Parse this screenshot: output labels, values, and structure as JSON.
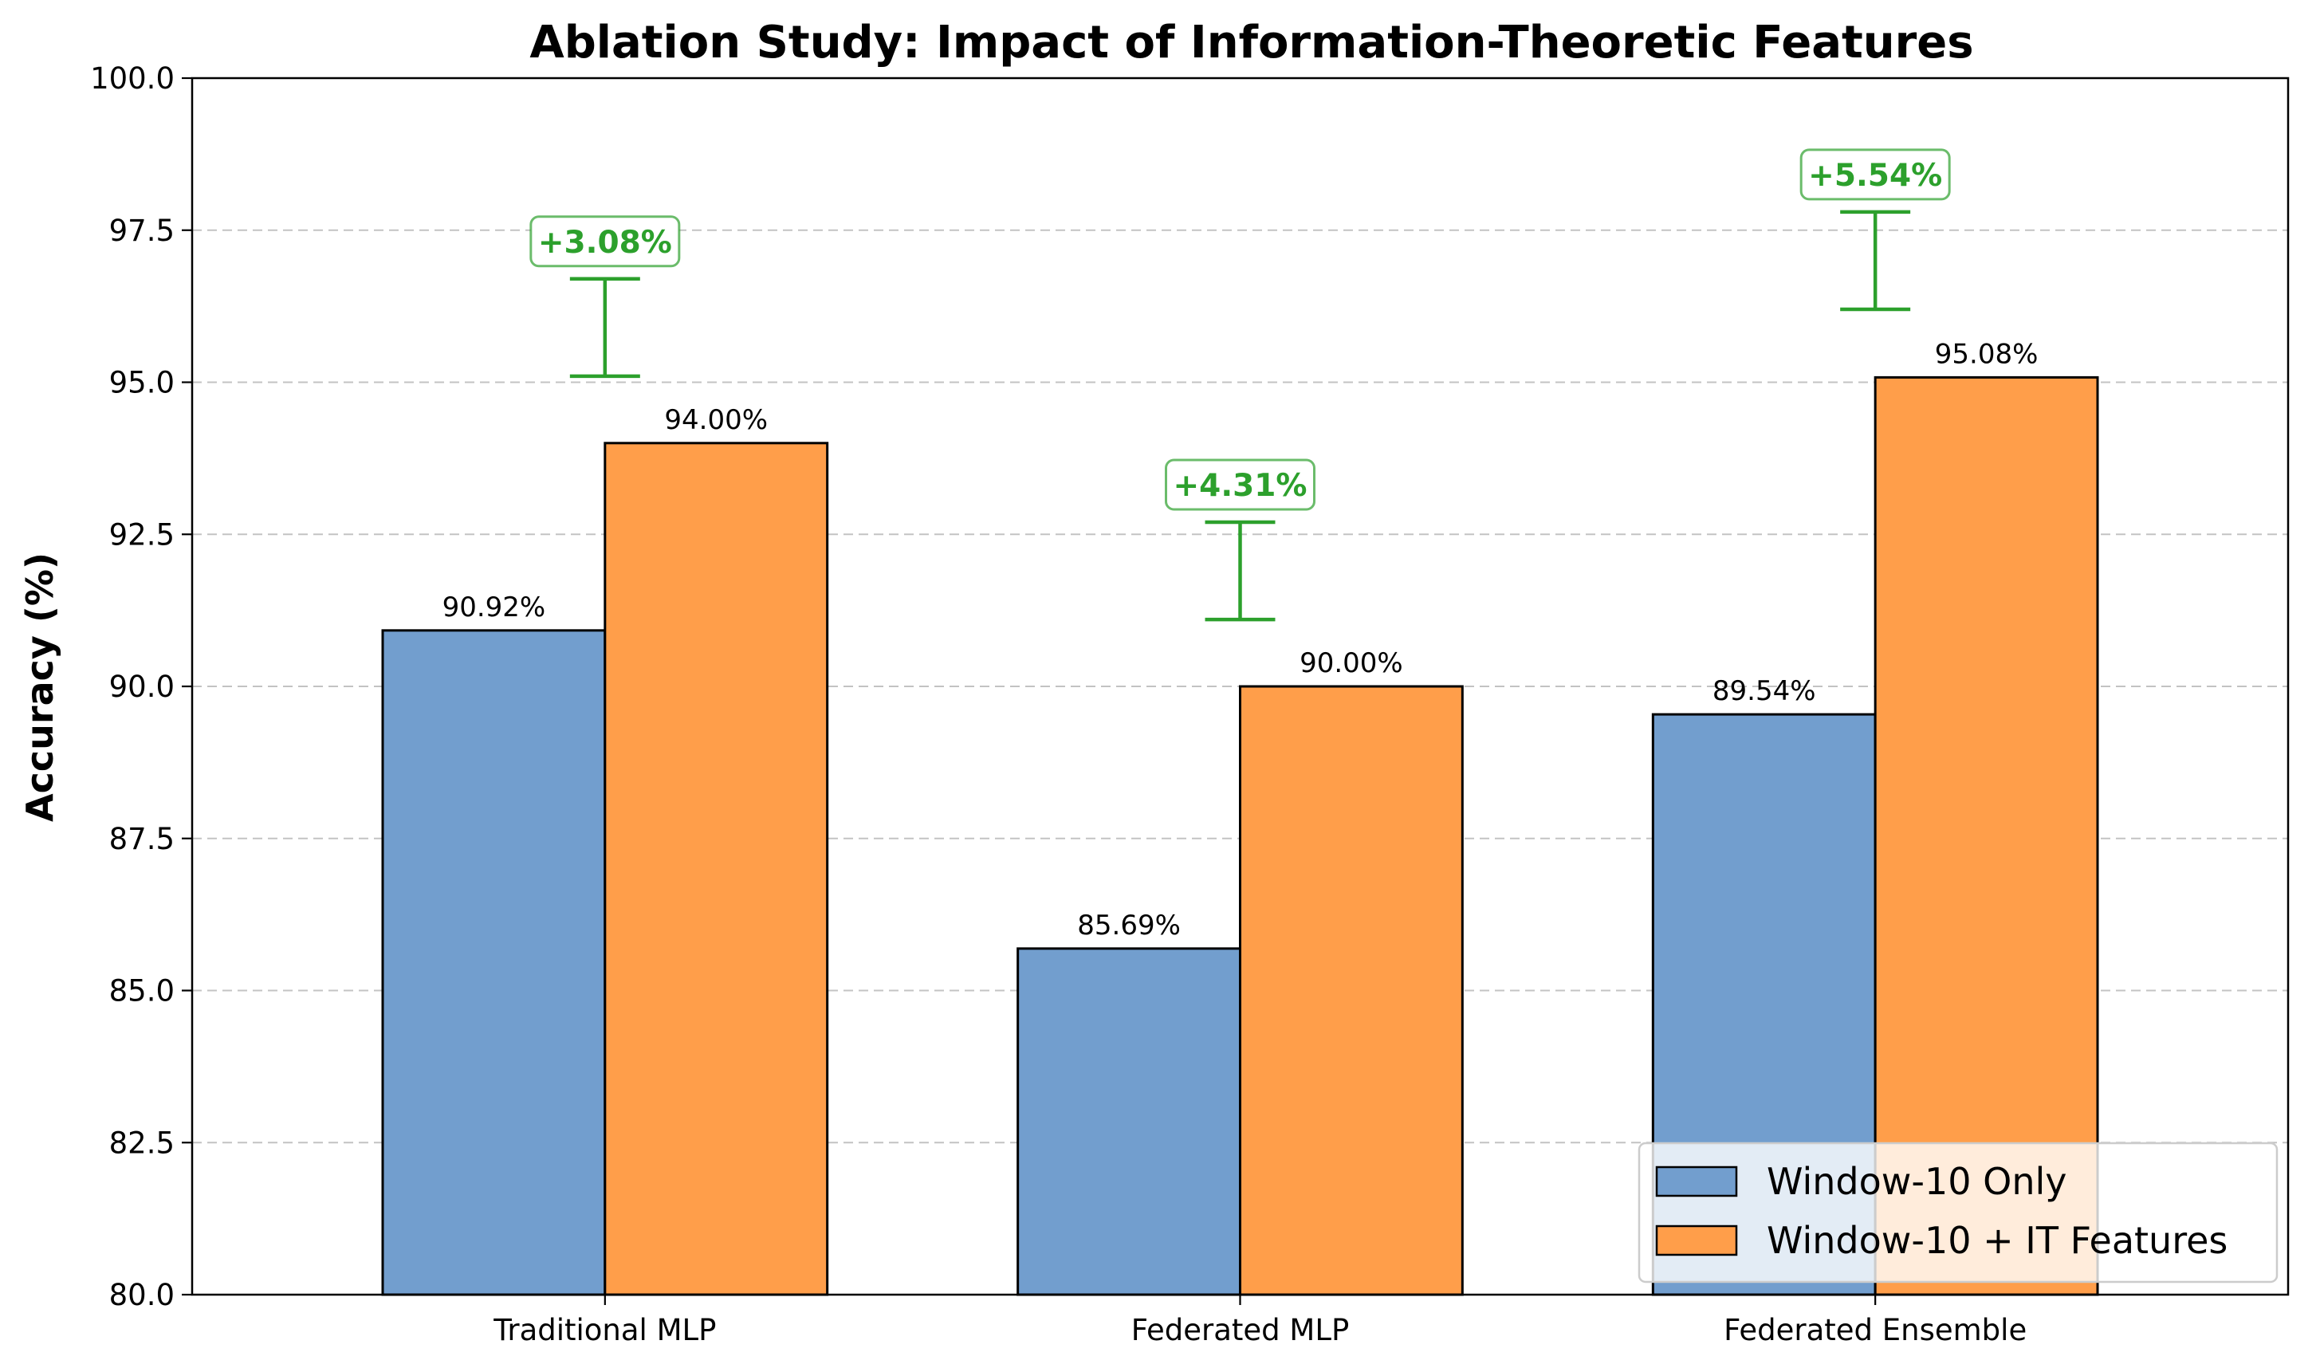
{
  "chart_data": {
    "type": "bar",
    "title": "Ablation Study: Impact of Information-Theoretic Features",
    "xlabel": "",
    "ylabel": "Accuracy (%)",
    "ylim": [
      80,
      100
    ],
    "yticks": [
      "80.0",
      "82.5",
      "85.0",
      "87.5",
      "90.0",
      "92.5",
      "95.0",
      "97.5",
      "100.0"
    ],
    "grid": "y-dashed",
    "legend_position": "lower right",
    "categories": [
      "Traditional MLP",
      "Federated MLP",
      "Federated Ensemble"
    ],
    "series": [
      {
        "name": "Window-10 Only",
        "color": "#729ece",
        "values": [
          90.92,
          85.69,
          89.54
        ],
        "labels": [
          "90.92%",
          "85.69%",
          "89.54%"
        ]
      },
      {
        "name": "Window-10 + IT Features",
        "color": "#ff9e4a",
        "values": [
          94.0,
          90.0,
          95.08
        ],
        "labels": [
          "94.00%",
          "90.00%",
          "95.08%"
        ]
      }
    ],
    "improvements": {
      "color": "#2ca02c",
      "labels": [
        "+3.08%",
        "+4.31%",
        "+5.54%"
      ],
      "bracket_low": [
        95.1,
        91.1,
        96.2
      ],
      "bracket_high": [
        96.7,
        92.7,
        97.8
      ]
    }
  }
}
